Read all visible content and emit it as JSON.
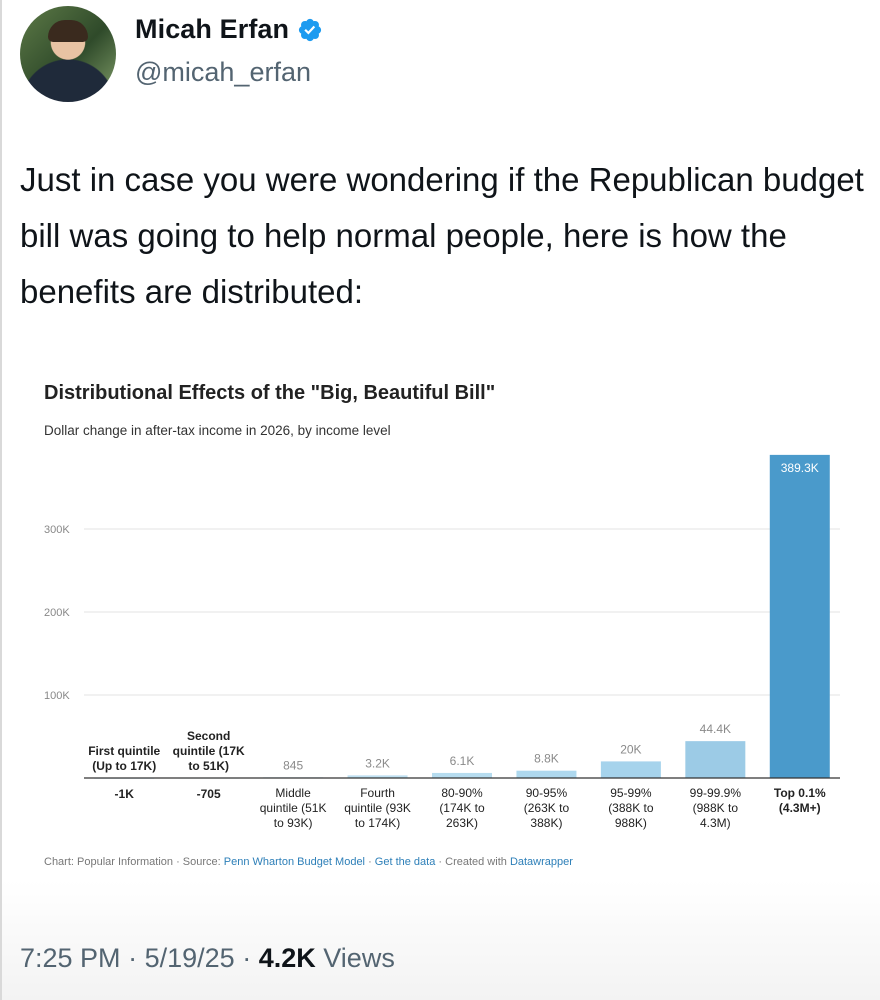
{
  "author": {
    "display_name": "Micah Erfan",
    "handle": "@micah_erfan",
    "avatar_icon": "profile-photo",
    "verified_icon": "verified-badge-icon",
    "verified_color": "#1d9bf0"
  },
  "tweet": {
    "text": "Just in case you were wondering if the Republican budget bill was going to help normal people, here is how the benefits are distributed:"
  },
  "meta": {
    "time": "7:25 PM",
    "date": "5/19/25",
    "separator": "·",
    "views_count": "4.2K",
    "views_label": "Views"
  },
  "chart_data": {
    "type": "bar",
    "title": "Distributional Effects of the \"Big, Beautiful Bill\"",
    "subtitle": "Dollar change in after-tax income in 2026, by income level",
    "xlabel": "",
    "ylabel": "",
    "ylim": [
      0,
      400000
    ],
    "yticks": [
      100000,
      200000,
      300000
    ],
    "ytick_labels": [
      "100K",
      "200K",
      "300K"
    ],
    "grid": true,
    "legend": "none",
    "categories": [
      [
        "First quintile",
        "(Up to 17K)"
      ],
      [
        "Second",
        "quintile (17K",
        "to 51K)"
      ],
      [
        "Middle",
        "quintile (51K",
        "to 93K)"
      ],
      [
        "Fourth",
        "quintile (93K",
        "to 174K)"
      ],
      [
        "80-90%",
        "(174K to",
        "263K)"
      ],
      [
        "90-95%",
        "(263K to",
        "388K)"
      ],
      [
        "95-99%",
        "(388K to",
        "988K)"
      ],
      [
        "99-99.9%",
        "(988K to",
        "4.3M)"
      ],
      [
        "Top 0.1%",
        "(4.3M+)"
      ]
    ],
    "values": [
      -1000,
      -705,
      845,
      3200,
      6100,
      8800,
      20000,
      44400,
      389300
    ],
    "value_labels": [
      "-1K",
      "-705",
      "845",
      "3.2K",
      "6.1K",
      "8.8K",
      "20K",
      "44.4K",
      "389.3K"
    ],
    "colors": [
      "#d6ecf7",
      "#d6ecf7",
      "#c7e4f3",
      "#bfe0f1",
      "#b6dcef",
      "#aed8ee",
      "#a6d3ec",
      "#9ccbe6",
      "#4a9acb"
    ],
    "footer": {
      "prefix": "Chart: Popular Information · Source: ",
      "source": "Penn Wharton Budget Model",
      "sep1": " · ",
      "get_data": "Get the data",
      "sep2": " · Created with ",
      "tool": "Datawrapper"
    }
  }
}
